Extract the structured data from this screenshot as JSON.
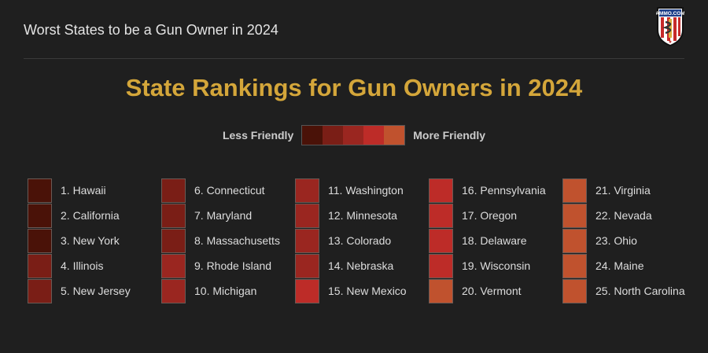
{
  "header": {
    "title": "Worst States to be a Gun Owner in 2024",
    "logo_text": "AMMO.COM"
  },
  "chart_data": {
    "type": "table",
    "title": "State Rankings for Gun Owners in 2024",
    "legend": {
      "left_label": "Less Friendly",
      "right_label": "More Friendly",
      "colors": [
        "#4a1208",
        "#7a1e16",
        "#9a2620",
        "#bd2c28",
        "#c0522e"
      ]
    },
    "rows": [
      {
        "label": "1. Hawaii",
        "level": 0
      },
      {
        "label": "2. California",
        "level": 0
      },
      {
        "label": "3. New York",
        "level": 0
      },
      {
        "label": "4. Illinois",
        "level": 1
      },
      {
        "label": "5. New Jersey",
        "level": 1
      },
      {
        "label": "6. Connecticut",
        "level": 1
      },
      {
        "label": "7. Maryland",
        "level": 1
      },
      {
        "label": "8. Massachusetts",
        "level": 1
      },
      {
        "label": "9. Rhode Island",
        "level": 2
      },
      {
        "label": "10. Michigan",
        "level": 2
      },
      {
        "label": "11. Washington",
        "level": 2
      },
      {
        "label": "12. Minnesota",
        "level": 2
      },
      {
        "label": "13. Colorado",
        "level": 2
      },
      {
        "label": "14. Nebraska",
        "level": 2
      },
      {
        "label": "15. New Mexico",
        "level": 3
      },
      {
        "label": "16. Pennsylvania",
        "level": 3
      },
      {
        "label": "17. Oregon",
        "level": 3
      },
      {
        "label": "18. Delaware",
        "level": 3
      },
      {
        "label": "19. Wisconsin",
        "level": 3
      },
      {
        "label": "20. Vermont",
        "level": 4
      },
      {
        "label": "21. Virginia",
        "level": 4
      },
      {
        "label": "22. Nevada",
        "level": 4
      },
      {
        "label": "23. Ohio",
        "level": 4
      },
      {
        "label": "24. Maine",
        "level": 4
      },
      {
        "label": "25. North Carolina",
        "level": 4
      }
    ]
  }
}
